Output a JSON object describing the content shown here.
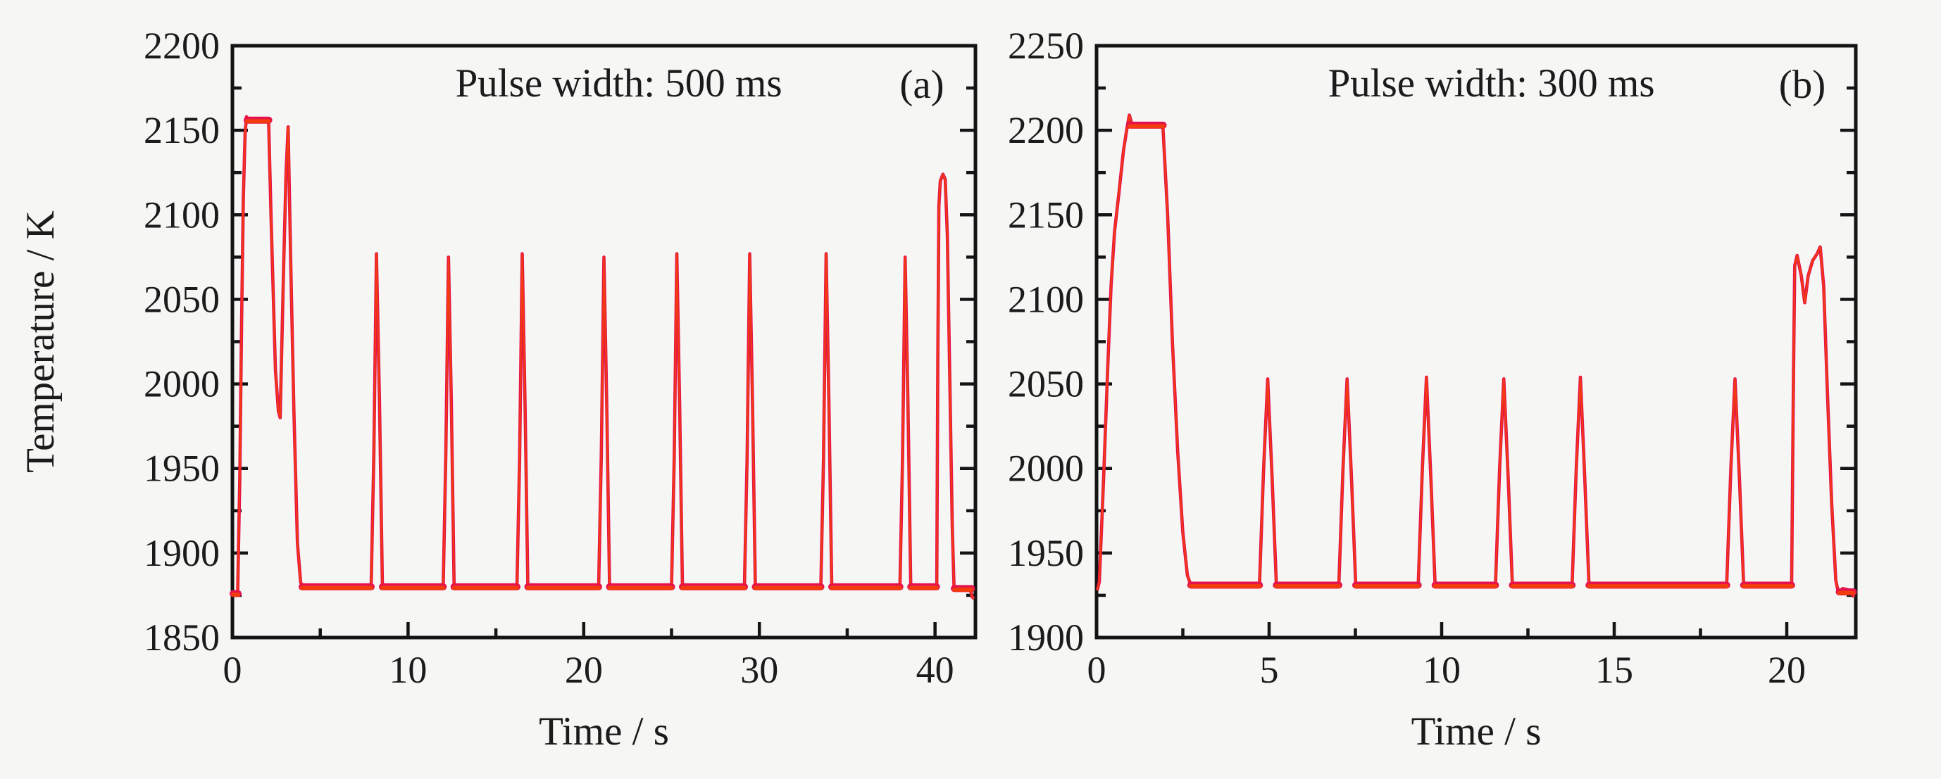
{
  "figure": {
    "background": "#f6f6f4",
    "axis_color": "#141414",
    "text_color": "#1b1b1b"
  },
  "chart_data": [
    {
      "type": "line",
      "panel_label": "(a)",
      "title": "Pulse width: 500 ms",
      "xlabel": "Time / s",
      "ylabel": "Temperature / K",
      "xlim": [
        0,
        42.3
      ],
      "xticks": [
        0,
        10,
        20,
        30,
        40
      ],
      "x_minor_step": 5,
      "ylim": [
        1850,
        2200
      ],
      "yticks": [
        1850,
        1900,
        1950,
        2000,
        2050,
        2100,
        2150,
        2200
      ],
      "y_minor_step": 25,
      "grid": false,
      "legend": null,
      "series": [
        {
          "name": "temperature-trace-a",
          "color_edge": "#e5124d",
          "color_core": "#f23c0e",
          "baseline_K": 1880,
          "first_plateau_K": 2156,
          "inter_peak_dip_K": 1980,
          "second_peak_K": 2152,
          "spike_peak_K": 2077,
          "spike_times_s": [
            8.2,
            12.3,
            16.5,
            21.15,
            25.3,
            29.45,
            33.8,
            38.3
          ],
          "final_peak_K": 2124,
          "final_peak_time_s": 40.45,
          "points": [
            [
              0.02,
              1878
            ],
            [
              0.06,
              1875
            ],
            [
              0.3,
              1877
            ],
            [
              0.42,
              1945
            ],
            [
              0.52,
              2035
            ],
            [
              0.62,
              2110
            ],
            [
              0.72,
              2148
            ],
            [
              0.8,
              2158
            ],
            [
              0.9,
              2156
            ],
            [
              2.06,
              2156
            ],
            [
              2.2,
              2098
            ],
            [
              2.45,
              2008
            ],
            [
              2.62,
              1984
            ],
            [
              2.72,
              1980
            ],
            [
              2.9,
              2062
            ],
            [
              3.05,
              2124
            ],
            [
              3.17,
              2152
            ],
            [
              3.32,
              2072
            ],
            [
              3.5,
              1984
            ],
            [
              3.7,
              1906
            ],
            [
              3.88,
              1883
            ],
            [
              3.97,
              1880
            ],
            [
              7.9,
              1880
            ],
            [
              8.05,
              1958
            ],
            [
              8.2,
              2077
            ],
            [
              8.37,
              1990
            ],
            [
              8.54,
              1880
            ],
            [
              12.0,
              1880
            ],
            [
              12.15,
              1958
            ],
            [
              12.3,
              2075
            ],
            [
              12.46,
              1990
            ],
            [
              12.62,
              1880
            ],
            [
              16.2,
              1880
            ],
            [
              16.35,
              1956
            ],
            [
              16.5,
              2077
            ],
            [
              16.66,
              1988
            ],
            [
              16.82,
              1880
            ],
            [
              20.85,
              1880
            ],
            [
              21.0,
              1958
            ],
            [
              21.15,
              2075
            ],
            [
              21.31,
              1988
            ],
            [
              21.47,
              1880
            ],
            [
              25.0,
              1880
            ],
            [
              25.15,
              1956
            ],
            [
              25.3,
              2077
            ],
            [
              25.46,
              1988
            ],
            [
              25.62,
              1880
            ],
            [
              29.15,
              1880
            ],
            [
              29.3,
              1956
            ],
            [
              29.45,
              2077
            ],
            [
              29.61,
              1988
            ],
            [
              29.77,
              1880
            ],
            [
              33.5,
              1880
            ],
            [
              33.65,
              1956
            ],
            [
              33.8,
              2077
            ],
            [
              33.96,
              1988
            ],
            [
              34.12,
              1880
            ],
            [
              38.0,
              1880
            ],
            [
              38.15,
              1956
            ],
            [
              38.3,
              2075
            ],
            [
              38.46,
              1988
            ],
            [
              38.62,
              1880
            ],
            [
              40.1,
              1880
            ],
            [
              40.16,
              2015
            ],
            [
              40.22,
              2105
            ],
            [
              40.3,
              2120
            ],
            [
              40.45,
              2124
            ],
            [
              40.58,
              2121
            ],
            [
              40.7,
              2088
            ],
            [
              40.85,
              1998
            ],
            [
              40.98,
              1916
            ],
            [
              41.08,
              1880
            ],
            [
              42.0,
              1879
            ],
            [
              42.12,
              1874
            ],
            [
              42.22,
              1873
            ]
          ],
          "flat_bands": [
            [
              0.04,
              0.32,
              1876
            ],
            [
              0.84,
              2.07,
              2156
            ],
            [
              3.97,
              7.9,
              1880
            ],
            [
              8.54,
              12.0,
              1880
            ],
            [
              12.62,
              16.2,
              1880
            ],
            [
              16.82,
              20.85,
              1880
            ],
            [
              21.47,
              25.0,
              1880
            ],
            [
              25.62,
              29.15,
              1880
            ],
            [
              29.77,
              33.5,
              1880
            ],
            [
              34.12,
              38.0,
              1880
            ],
            [
              38.62,
              40.08,
              1880
            ],
            [
              41.1,
              42.08,
              1879
            ]
          ]
        }
      ]
    },
    {
      "type": "line",
      "panel_label": "(b)",
      "title": "Pulse width: 300 ms",
      "xlabel": "Time / s",
      "ylabel": null,
      "xlim": [
        0,
        22
      ],
      "xticks": [
        0,
        5,
        10,
        15,
        20
      ],
      "x_minor_step": 2.5,
      "ylim": [
        1900,
        2250
      ],
      "yticks": [
        1900,
        1950,
        2000,
        2050,
        2100,
        2150,
        2200,
        2250
      ],
      "y_minor_step": 25,
      "grid": false,
      "legend": null,
      "series": [
        {
          "name": "temperature-trace-b",
          "color_edge": "#e5124d",
          "color_core": "#f23c0e",
          "baseline_K": 1931,
          "first_plateau_K": 2203,
          "spike_peak_K": 2053,
          "spike_times_s": [
            4.96,
            7.26,
            9.56,
            11.8,
            14.02,
            18.5
          ],
          "final_humps_K": [
            2126,
            2098,
            2131
          ],
          "final_peak_time_s": 20.97,
          "points": [
            [
              0.02,
              1928
            ],
            [
              0.08,
              1933
            ],
            [
              0.2,
              1992
            ],
            [
              0.32,
              2058
            ],
            [
              0.42,
              2108
            ],
            [
              0.52,
              2140
            ],
            [
              0.65,
              2163
            ],
            [
              0.78,
              2188
            ],
            [
              0.88,
              2201
            ],
            [
              0.95,
              2209
            ],
            [
              1.02,
              2204
            ],
            [
              1.92,
              2203
            ],
            [
              2.06,
              2150
            ],
            [
              2.2,
              2074
            ],
            [
              2.35,
              2010
            ],
            [
              2.5,
              1962
            ],
            [
              2.63,
              1937
            ],
            [
              2.73,
              1931
            ],
            [
              4.72,
              1931
            ],
            [
              4.84,
              2000
            ],
            [
              4.96,
              2053
            ],
            [
              5.09,
              1993
            ],
            [
              5.21,
              1931
            ],
            [
              7.02,
              1931
            ],
            [
              7.14,
              2000
            ],
            [
              7.26,
              2053
            ],
            [
              7.39,
              1993
            ],
            [
              7.51,
              1931
            ],
            [
              9.32,
              1931
            ],
            [
              9.44,
              2000
            ],
            [
              9.56,
              2054
            ],
            [
              9.69,
              1993
            ],
            [
              9.81,
              1931
            ],
            [
              11.56,
              1931
            ],
            [
              11.68,
              2000
            ],
            [
              11.8,
              2053
            ],
            [
              11.93,
              1993
            ],
            [
              12.05,
              1931
            ],
            [
              13.78,
              1931
            ],
            [
              13.9,
              2000
            ],
            [
              14.02,
              2054
            ],
            [
              14.15,
              1993
            ],
            [
              14.27,
              1931
            ],
            [
              18.26,
              1931
            ],
            [
              18.38,
              2000
            ],
            [
              18.5,
              2053
            ],
            [
              18.63,
              1993
            ],
            [
              18.75,
              1931
            ],
            [
              20.14,
              1931
            ],
            [
              20.19,
              2045
            ],
            [
              20.23,
              2120
            ],
            [
              20.3,
              2126
            ],
            [
              20.42,
              2114
            ],
            [
              20.52,
              2098
            ],
            [
              20.62,
              2114
            ],
            [
              20.75,
              2123
            ],
            [
              20.88,
              2127
            ],
            [
              20.97,
              2131
            ],
            [
              21.07,
              2108
            ],
            [
              21.18,
              2044
            ],
            [
              21.3,
              1980
            ],
            [
              21.42,
              1934
            ],
            [
              21.5,
              1926
            ],
            [
              21.62,
              1929
            ],
            [
              21.82,
              1928
            ],
            [
              21.95,
              1924
            ]
          ],
          "flat_bands": [
            [
              0.96,
              1.93,
              2203
            ],
            [
              2.73,
              4.72,
              1931
            ],
            [
              5.21,
              7.02,
              1931
            ],
            [
              7.51,
              9.32,
              1931
            ],
            [
              9.81,
              11.56,
              1931
            ],
            [
              12.05,
              13.78,
              1931
            ],
            [
              14.27,
              18.26,
              1931
            ],
            [
              18.75,
              20.14,
              1931
            ],
            [
              21.52,
              21.93,
              1927
            ]
          ]
        }
      ]
    }
  ]
}
